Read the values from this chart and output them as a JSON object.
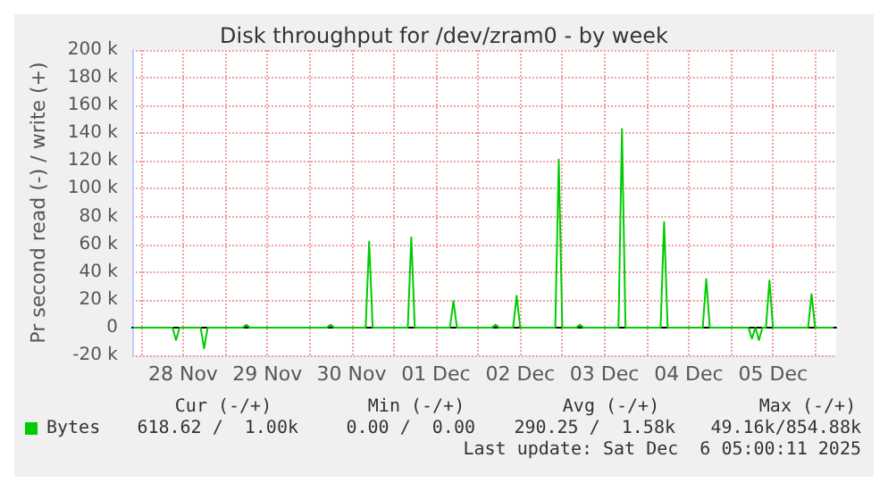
{
  "chart_data": {
    "type": "line",
    "title": "Disk throughput for /dev/zram0 - by week",
    "ylabel": "Pr second read (-) / write (+)",
    "x": [
      "2025-11-27T22:00",
      "2025-11-28T09:00",
      "2025-11-28T10:00",
      "2025-11-28T11:00",
      "2025-11-28T17:00",
      "2025-11-28T18:00",
      "2025-11-28T19:00",
      "2025-11-29T05:00",
      "2025-11-29T06:00",
      "2025-11-29T07:00",
      "2025-11-30T05:00",
      "2025-11-30T06:00",
      "2025-11-30T07:00",
      "2025-11-30T16:00",
      "2025-11-30T17:00",
      "2025-11-30T18:00",
      "2025-12-01T04:00",
      "2025-12-01T05:00",
      "2025-12-01T06:00",
      "2025-12-01T16:00",
      "2025-12-01T17:00",
      "2025-12-01T18:00",
      "2025-12-02T04:00",
      "2025-12-02T05:00",
      "2025-12-02T06:00",
      "2025-12-02T10:00",
      "2025-12-02T11:00",
      "2025-12-02T12:00",
      "2025-12-02T22:00",
      "2025-12-02T23:00",
      "2025-12-03T00:00",
      "2025-12-03T04:00",
      "2025-12-03T05:00",
      "2025-12-03T06:00",
      "2025-12-03T16:00",
      "2025-12-03T17:00",
      "2025-12-03T18:00",
      "2025-12-04T04:00",
      "2025-12-04T05:00",
      "2025-12-04T06:00",
      "2025-12-04T16:00",
      "2025-12-04T17:00",
      "2025-12-04T18:00",
      "2025-12-05T05:00",
      "2025-12-05T06:00",
      "2025-12-05T07:00",
      "2025-12-05T08:00",
      "2025-12-05T09:00",
      "2025-12-05T10:00",
      "2025-12-05T11:00",
      "2025-12-05T12:00",
      "2025-12-05T22:00",
      "2025-12-05T23:00",
      "2025-12-06T00:00",
      "2025-12-06T05:00"
    ],
    "series": [
      {
        "name": "Bytes",
        "color": "#00cc00",
        "values": [
          0,
          0,
          -9000,
          0,
          0,
          -15000,
          0,
          0,
          2000,
          0,
          0,
          2000,
          0,
          0,
          62000,
          0,
          0,
          65000,
          0,
          0,
          19000,
          0,
          0,
          2000,
          0,
          0,
          23000,
          0,
          0,
          121000,
          0,
          0,
          2000,
          0,
          0,
          143000,
          0,
          0,
          76000,
          0,
          0,
          35000,
          0,
          0,
          -8000,
          0,
          -9000,
          0,
          0,
          34000,
          0,
          0,
          24000,
          0,
          0
        ]
      }
    ],
    "xlim": [
      "2025-11-27T21:30",
      "2025-12-06T06:00"
    ],
    "xticks": [
      {
        "value": "2025-11-28T00:00",
        "label": null
      },
      {
        "value": "2025-11-28T12:00",
        "label": "28 Nov"
      },
      {
        "value": "2025-11-29T00:00",
        "label": null
      },
      {
        "value": "2025-11-29T12:00",
        "label": "29 Nov"
      },
      {
        "value": "2025-11-30T00:00",
        "label": null
      },
      {
        "value": "2025-11-30T12:00",
        "label": "30 Nov"
      },
      {
        "value": "2025-12-01T00:00",
        "label": null
      },
      {
        "value": "2025-12-01T12:00",
        "label": "01 Dec"
      },
      {
        "value": "2025-12-02T00:00",
        "label": null
      },
      {
        "value": "2025-12-02T12:00",
        "label": "02 Dec"
      },
      {
        "value": "2025-12-03T00:00",
        "label": null
      },
      {
        "value": "2025-12-03T12:00",
        "label": "03 Dec"
      },
      {
        "value": "2025-12-04T00:00",
        "label": null
      },
      {
        "value": "2025-12-04T12:00",
        "label": "04 Dec"
      },
      {
        "value": "2025-12-05T00:00",
        "label": null
      },
      {
        "value": "2025-12-05T12:00",
        "label": "05 Dec"
      },
      {
        "value": "2025-12-06T00:00",
        "label": null
      }
    ],
    "ylim": [
      -20000,
      200000
    ],
    "yticks": [
      {
        "value": -20000,
        "label": "-20 k"
      },
      {
        "value": 0,
        "label": "0"
      },
      {
        "value": 20000,
        "label": "20 k"
      },
      {
        "value": 40000,
        "label": "40 k"
      },
      {
        "value": 60000,
        "label": "60 k"
      },
      {
        "value": 80000,
        "label": "80 k"
      },
      {
        "value": 100000,
        "label": "100 k"
      },
      {
        "value": 120000,
        "label": "120 k"
      },
      {
        "value": 140000,
        "label": "140 k"
      },
      {
        "value": 160000,
        "label": "160 k"
      },
      {
        "value": 180000,
        "label": "180 k"
      },
      {
        "value": 200000,
        "label": "200 k"
      }
    ],
    "grid": true,
    "legend": "bottom left",
    "marker": "none",
    "line_style": "solid",
    "annotations": [
      "Cur (-/+)",
      "Min (-/+)",
      "Avg (-/+)",
      "Max (-/+)",
      "618.62 /  1.00k",
      "0.00 /  0.00",
      "290.25 /  1.58k",
      "49.16k/854.88k",
      "Last update: Sat Dec  6 05:00:11 2025"
    ]
  }
}
